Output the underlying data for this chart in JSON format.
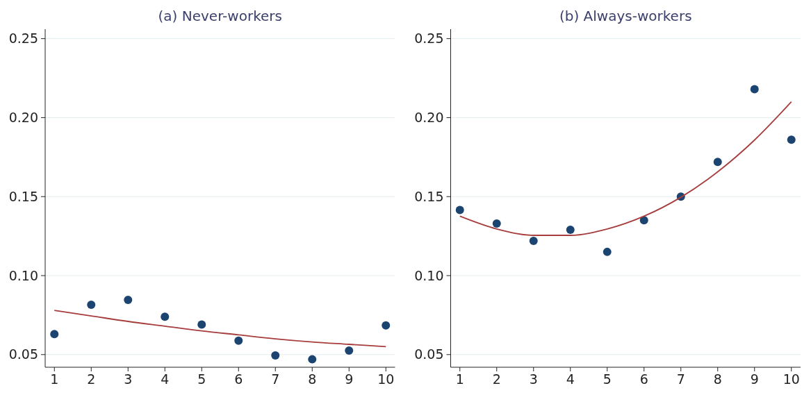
{
  "chart_data": [
    {
      "type": "scatter",
      "title": "(a) Never-workers",
      "x": [
        1,
        2,
        3,
        4,
        5,
        6,
        7,
        8,
        9,
        10
      ],
      "xlim": [
        0.75,
        10.25
      ],
      "xticks": [
        1,
        2,
        3,
        4,
        5,
        6,
        7,
        8,
        9,
        10
      ],
      "ylim": [
        0.042,
        0.256
      ],
      "yticks": [
        {
          "value": 0.05,
          "label": "0.05"
        },
        {
          "value": 0.1,
          "label": "0.10"
        },
        {
          "value": 0.15,
          "label": "0.15"
        },
        {
          "value": 0.2,
          "label": "0.20"
        },
        {
          "value": 0.25,
          "label": "0.25"
        }
      ],
      "grid": "y",
      "series": [
        {
          "marker": "circle",
          "color": "#1c4470",
          "values": [
            0.063,
            0.0815,
            0.0846,
            0.074,
            0.069,
            0.0588,
            0.0495,
            0.047,
            0.0525,
            0.0685
          ]
        },
        {
          "type": "line",
          "color": "#a63c3c",
          "line_style": "solid",
          "values": [
            0.078,
            0.0745,
            0.071,
            0.068,
            0.065,
            0.0625,
            0.06,
            0.058,
            0.0565,
            0.055
          ]
        }
      ]
    },
    {
      "type": "scatter",
      "title": "(b) Always-workers",
      "x": [
        1,
        2,
        3,
        4,
        5,
        6,
        7,
        8,
        9,
        10
      ],
      "xlim": [
        0.75,
        10.25
      ],
      "xticks": [
        1,
        2,
        3,
        4,
        5,
        6,
        7,
        8,
        9,
        10
      ],
      "ylim": [
        0.042,
        0.256
      ],
      "yticks": [
        {
          "value": 0.05,
          "label": "0.05"
        },
        {
          "value": 0.1,
          "label": "0.10"
        },
        {
          "value": 0.15,
          "label": "0.15"
        },
        {
          "value": 0.2,
          "label": "0.20"
        },
        {
          "value": 0.25,
          "label": "0.25"
        }
      ],
      "grid": "y",
      "series": [
        {
          "marker": "circle",
          "color": "#1c4470",
          "values": [
            0.1415,
            0.133,
            0.122,
            0.129,
            0.115,
            0.135,
            0.15,
            0.172,
            0.218,
            0.186
          ]
        },
        {
          "type": "line",
          "color": "#a63c3c",
          "line_style": "solid",
          "values": [
            0.1376,
            0.1295,
            0.1255,
            0.1255,
            0.1295,
            0.1376,
            0.1496,
            0.1657,
            0.1858,
            0.21
          ]
        }
      ]
    }
  ]
}
